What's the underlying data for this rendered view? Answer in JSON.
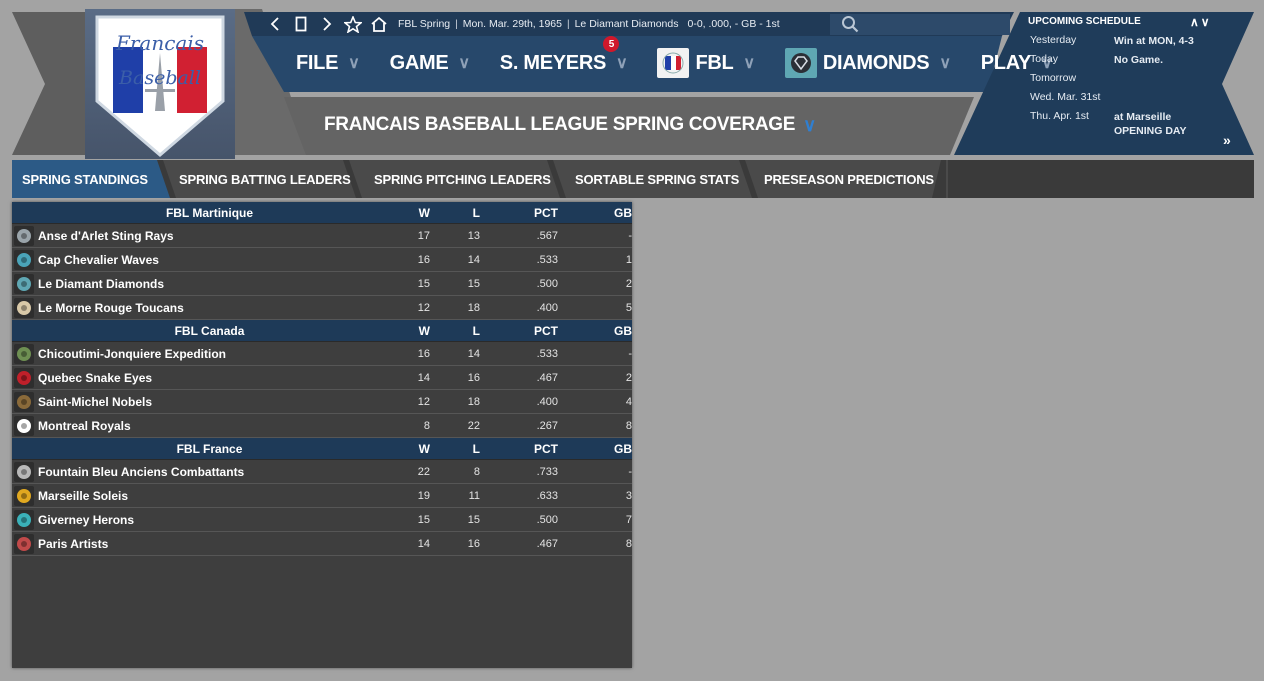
{
  "topbar": {
    "league": "FBL Spring",
    "date": "Mon. Mar. 29th, 1965",
    "team": "Le Diamant Diamonds",
    "record": "0-0, .000, - GB - 1st"
  },
  "menu": {
    "file": "FILE",
    "game": "GAME",
    "manager": "S. MEYERS",
    "manager_badge": "5",
    "league": "FBL",
    "team": "DIAMONDS",
    "play": "PLAY"
  },
  "logo": {
    "line1": "Francais",
    "line2": "Baseball"
  },
  "page_title": "FRANCAIS BASEBALL LEAGUE SPRING COVERAGE",
  "schedule": {
    "title": "UPCOMING SCHEDULE",
    "rows": [
      {
        "day": "Yesterday",
        "value": "Win at MON, 4-3"
      },
      {
        "day": "Today",
        "value": "No Game."
      },
      {
        "day": "Tomorrow",
        "value": ""
      },
      {
        "day": "Wed. Mar. 31st",
        "value": ""
      },
      {
        "day": "Thu. Apr. 1st",
        "value": "at Marseille",
        "value2": "OPENING DAY"
      }
    ]
  },
  "tabs": [
    "SPRING STANDINGS",
    "SPRING BATTING LEADERS",
    "SPRING PITCHING LEADERS",
    "SORTABLE SPRING STATS",
    "PRESEASON PREDICTIONS"
  ],
  "columns": {
    "w": "W",
    "l": "L",
    "pct": "PCT",
    "gb": "GB"
  },
  "groups": [
    {
      "name": "FBL Martinique",
      "teams": [
        {
          "name": "Anse d'Arlet Sting Rays",
          "w": "17",
          "l": "13",
          "pct": ".567",
          "gb": "-",
          "icon": "stingray-icon",
          "color": "#9aa4aa"
        },
        {
          "name": "Cap Chevalier Waves",
          "w": "16",
          "l": "14",
          "pct": ".533",
          "gb": "1",
          "icon": "wave-icon",
          "color": "#4aa3b8"
        },
        {
          "name": "Le Diamant Diamonds",
          "w": "15",
          "l": "15",
          "pct": ".500",
          "gb": "2",
          "icon": "diamond-icon",
          "color": "#5fa7b3"
        },
        {
          "name": "Le Morne Rouge Toucans",
          "w": "12",
          "l": "18",
          "pct": ".400",
          "gb": "5",
          "icon": "toucan-icon",
          "color": "#d9c9a8"
        }
      ]
    },
    {
      "name": "FBL Canada",
      "teams": [
        {
          "name": "Chicoutimi-Jonquiere Expedition",
          "w": "16",
          "l": "14",
          "pct": ".533",
          "gb": "-",
          "icon": "expedition-icon",
          "color": "#6e8f52"
        },
        {
          "name": "Quebec Snake Eyes",
          "w": "14",
          "l": "16",
          "pct": ".467",
          "gb": "2",
          "icon": "snake-eyes-icon",
          "color": "#c0202a"
        },
        {
          "name": "Saint-Michel Nobels",
          "w": "12",
          "l": "18",
          "pct": ".400",
          "gb": "4",
          "icon": "nobels-icon",
          "color": "#8a6a3a"
        },
        {
          "name": "Montreal Royals",
          "w": "8",
          "l": "22",
          "pct": ".267",
          "gb": "8",
          "icon": "royals-m-icon",
          "color": "#ffffff"
        }
      ]
    },
    {
      "name": "FBL France",
      "teams": [
        {
          "name": "Fountain Bleu Anciens Combattants",
          "w": "22",
          "l": "8",
          "pct": ".733",
          "gb": "-",
          "icon": "anciens-icon",
          "color": "#b8b8b8"
        },
        {
          "name": "Marseille Soleis",
          "w": "19",
          "l": "11",
          "pct": ".633",
          "gb": "3",
          "icon": "sun-icon",
          "color": "#e0a820"
        },
        {
          "name": "Giverney Herons",
          "w": "15",
          "l": "15",
          "pct": ".500",
          "gb": "7",
          "icon": "heron-icon",
          "color": "#3ab0b8"
        },
        {
          "name": "Paris Artists",
          "w": "14",
          "l": "16",
          "pct": ".467",
          "gb": "8",
          "icon": "artists-icon",
          "color": "#c04a4a"
        }
      ]
    }
  ]
}
